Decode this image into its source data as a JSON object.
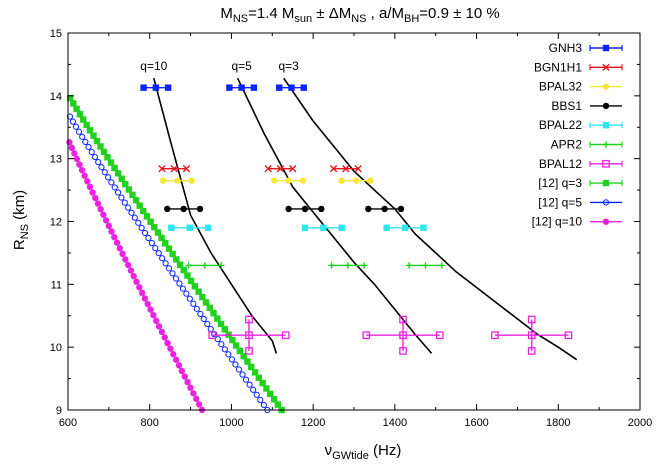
{
  "chart_data": {
    "type": "scatter",
    "title": "M_NS=1.4 M_sun ± ΔM_NS ,    a/M_BH=0.9 ± 10 %",
    "title_parts": {
      "p1": "M",
      "p1_sub": "NS",
      "p2": "=1.4 M",
      "p2_sub": "sun",
      "p3": " ± ΔM",
      "p3_sub": "NS",
      "p4": " ,    a/M",
      "p4_sub": "BH",
      "p5": "=0.9 ± 10 %"
    },
    "xlabel_parts": {
      "main": "ν",
      "sub": "GWtide",
      "tail": " (Hz)"
    },
    "ylabel_parts": {
      "main": "R",
      "sub": "NS",
      "tail": " (km)"
    },
    "xlim": [
      600,
      2000
    ],
    "ylim": [
      9,
      15
    ],
    "xticks": [
      "600",
      "800",
      "1000",
      "1200",
      "1400",
      "1600",
      "1800",
      "2000"
    ],
    "yticks": [
      "9",
      "10",
      "11",
      "12",
      "13",
      "14",
      "15"
    ],
    "legend_position": "top-right",
    "annotations": [
      {
        "text": "q=10",
        "x": 810,
        "y": 14.28
      },
      {
        "text": "q=5",
        "x": 1025,
        "y": 14.28
      },
      {
        "text": "q=3",
        "x": 1140,
        "y": 14.28
      }
    ],
    "eos_points": [
      {
        "name": "GNH3",
        "color": "#0b24fb",
        "marker": "square-filled",
        "R": 14.13,
        "xerr": 30,
        "x": [
          815,
          1025,
          1147
        ]
      },
      {
        "name": "BGN1H1",
        "color": "#e8141d",
        "marker": "x",
        "R": 12.84,
        "xerr": 30,
        "x": [
          860,
          1120,
          1280
        ]
      },
      {
        "name": "BPAL32",
        "color": "#f5e73a",
        "marker": "circle-filled",
        "R": 12.65,
        "xerr": 35,
        "x": [
          868,
          1140,
          1305
        ]
      },
      {
        "name": "BBS1",
        "color": "#000000",
        "marker": "circle-filled",
        "R": 12.2,
        "xerr": 40,
        "x": [
          883,
          1180,
          1375
        ]
      },
      {
        "name": "BPAL22",
        "color": "#2ee6f0",
        "marker": "square-filled",
        "R": 11.9,
        "xerr": 45,
        "x": [
          898,
          1225,
          1425
        ]
      },
      {
        "name": "APR2",
        "color": "#22d020",
        "marker": "plus",
        "R": 11.3,
        "xerr": 40,
        "x": [
          935,
          1285,
          1475
        ]
      },
      {
        "name": "BPAL12",
        "color": "#ea23e1",
        "marker": "square-open",
        "R": 10.19,
        "xerr": 90,
        "yerr": 0.25,
        "x": [
          1043,
          1420,
          1735
        ]
      }
    ],
    "fit_curves": [
      {
        "label": "q=10",
        "x": [
          810,
          850,
          900,
          950,
          1000,
          1050,
          1100,
          1110
        ],
        "y": [
          14.28,
          13.3,
          12.1,
          11.5,
          11.0,
          10.5,
          10.1,
          9.9
        ]
      },
      {
        "label": "q=5",
        "x": [
          1015,
          1080,
          1150,
          1200,
          1250,
          1300,
          1350,
          1400,
          1450,
          1490
        ],
        "y": [
          14.28,
          13.4,
          12.55,
          12.15,
          11.75,
          11.35,
          11.0,
          10.6,
          10.2,
          9.9
        ]
      },
      {
        "label": "q=3",
        "x": [
          1128,
          1200,
          1250,
          1300,
          1350,
          1400,
          1450,
          1500,
          1550,
          1600,
          1650,
          1700,
          1750,
          1800,
          1845
        ],
        "y": [
          14.28,
          13.6,
          13.2,
          12.8,
          12.5,
          12.2,
          11.8,
          11.5,
          11.2,
          10.95,
          10.7,
          10.45,
          10.2,
          10.0,
          9.8
        ]
      }
    ],
    "series": [
      {
        "name": "[12] q=3",
        "color": "#22d020",
        "marker": "square-filled",
        "x0": 598,
        "y0": 14.05,
        "x1": 1123,
        "y1": 9.0,
        "n": 60
      },
      {
        "name": "[12] q=5",
        "color": "#0b24fb",
        "marker": "circle-open",
        "x0": 598,
        "y0": 13.75,
        "x1": 1088,
        "y1": 9.0,
        "n": 60
      },
      {
        "name": "[12] q=10",
        "color": "#ea23e1",
        "marker": "circle-filled",
        "x0": 598,
        "y0": 13.35,
        "x1": 928,
        "y1": 9.0,
        "n": 50
      }
    ]
  }
}
